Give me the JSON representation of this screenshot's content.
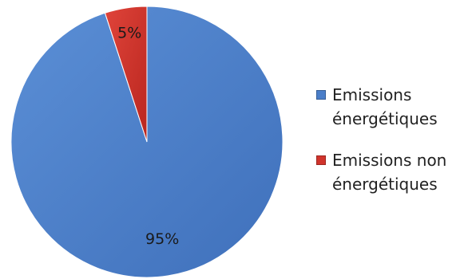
{
  "chart_data": {
    "type": "pie",
    "title": "",
    "slices": [
      {
        "label": "Emissions énergétiques",
        "value": 95,
        "display": "95%",
        "color": "#4a7ec9"
      },
      {
        "label": "Emissions non énergétiques",
        "value": 5,
        "display": "5%",
        "color": "#d0342c"
      }
    ],
    "legend_position": "right"
  }
}
